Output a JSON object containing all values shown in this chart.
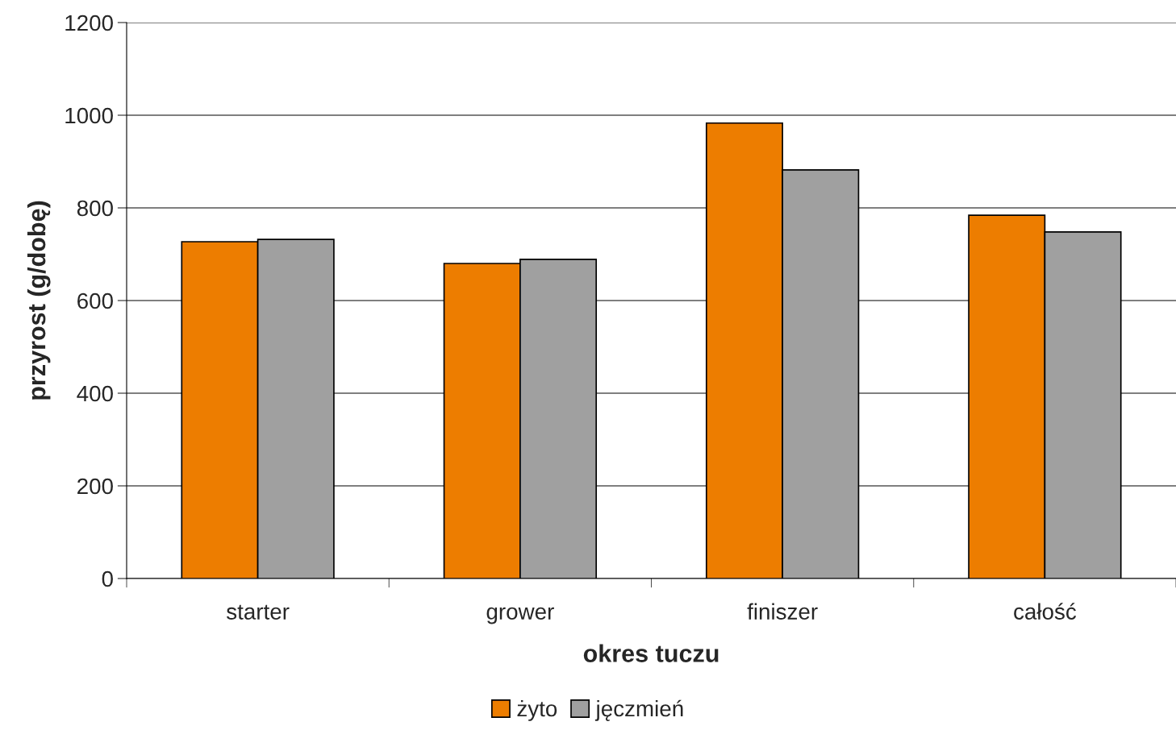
{
  "chart_data": {
    "type": "bar",
    "xlabel": "okres tuczu",
    "ylabel": "przyrost (g/dobę)",
    "categories": [
      "starter",
      "grower",
      "finiszer",
      "całość"
    ],
    "series": [
      {
        "name": "żyto",
        "color": "#ed7d00",
        "values": [
          727,
          680,
          983,
          784
        ]
      },
      {
        "name": "jęczmień",
        "color": "#a0a0a0",
        "values": [
          732,
          689,
          882,
          748
        ]
      }
    ],
    "ylim": [
      0,
      1200
    ],
    "yticks": [
      0,
      200,
      400,
      600,
      800,
      1000,
      1200
    ],
    "grid": "y",
    "legend": "bottom"
  }
}
